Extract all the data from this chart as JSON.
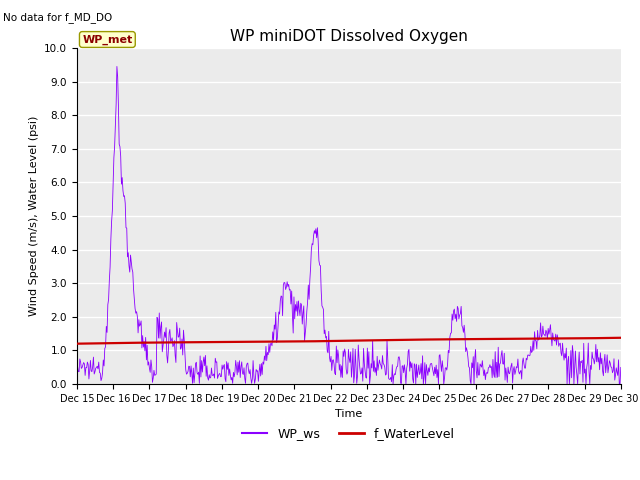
{
  "title": "WP miniDOT Dissolved Oxygen",
  "no_data_text": "No data for f_MD_DO",
  "ylabel": "Wind Speed (m/s), Water Level (psi)",
  "xlabel": "Time",
  "ylim": [
    0.0,
    10.0
  ],
  "yticks": [
    0.0,
    1.0,
    2.0,
    3.0,
    4.0,
    5.0,
    6.0,
    7.0,
    8.0,
    9.0,
    10.0
  ],
  "xtick_labels": [
    "Dec 15",
    "Dec 16",
    "Dec 17",
    "Dec 18",
    "Dec 19",
    "Dec 20",
    "Dec 21",
    "Dec 22",
    "Dec 23",
    "Dec 24",
    "Dec 25",
    "Dec 26",
    "Dec 27",
    "Dec 28",
    "Dec 29",
    "Dec 30"
  ],
  "wp_ws_color": "#8B00FF",
  "f_waterlevel_color": "#CC0000",
  "legend_label_ws": "WP_ws",
  "legend_label_wl": "f_WaterLevel",
  "wp_met_box_color": "#FFFFCC",
  "wp_met_text_color": "#8B0000",
  "background_color": "#EBEBEB",
  "grid_color": "#FFFFFF",
  "title_fontsize": 11,
  "label_fontsize": 8,
  "tick_fontsize": 7.5,
  "legend_fontsize": 9
}
